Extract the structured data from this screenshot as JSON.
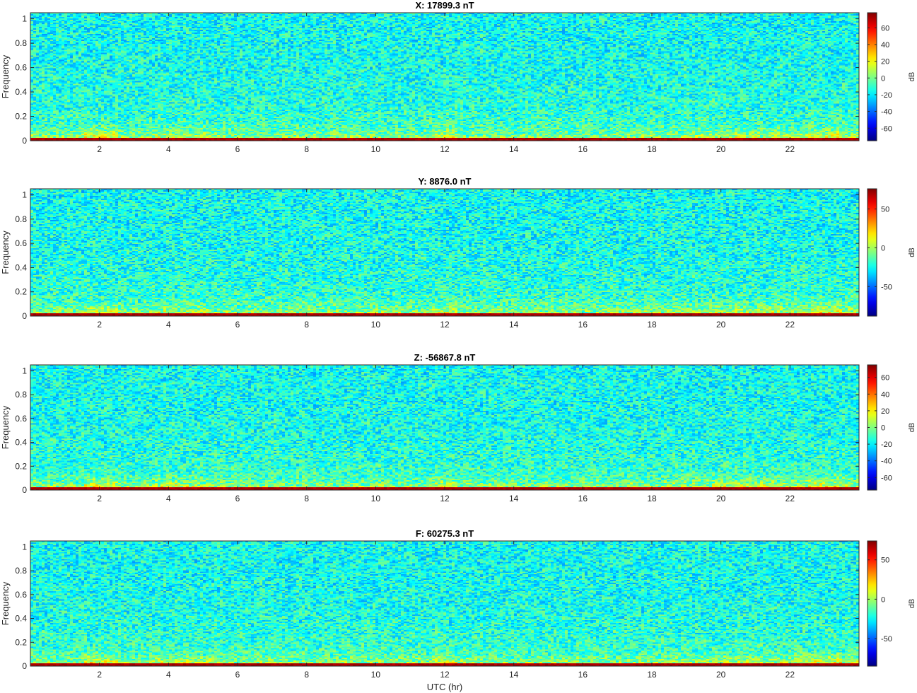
{
  "chart_data": [
    {
      "type": "heatmap",
      "title": "X: 17899.3 nT",
      "xlabel": "",
      "ylabel": "Frequency",
      "xlim": [
        0,
        24
      ],
      "ylim": [
        0,
        1.05
      ],
      "x_ticks": [
        2,
        4,
        6,
        8,
        10,
        12,
        14,
        16,
        18,
        20,
        22
      ],
      "y_ticks": [
        0,
        0.2,
        0.4,
        0.6,
        0.8,
        1
      ],
      "colorbar": {
        "label": "dB",
        "ticks": [
          60,
          40,
          20,
          0,
          -20,
          -40,
          -60
        ],
        "range": [
          -75,
          78
        ],
        "colormap": "jet"
      }
    },
    {
      "type": "heatmap",
      "title": "Y: 8876.0 nT",
      "xlabel": "",
      "ylabel": "Frequency",
      "xlim": [
        0,
        24
      ],
      "ylim": [
        0,
        1.05
      ],
      "x_ticks": [
        2,
        4,
        6,
        8,
        10,
        12,
        14,
        16,
        18,
        20,
        22
      ],
      "y_ticks": [
        0,
        0.2,
        0.4,
        0.6,
        0.8,
        1
      ],
      "colorbar": {
        "label": "dB",
        "ticks": [
          50,
          0,
          -50
        ],
        "range": [
          -88,
          76
        ],
        "colormap": "jet"
      }
    },
    {
      "type": "heatmap",
      "title": "Z: -56867.8 nT",
      "xlabel": "",
      "ylabel": "Frequency",
      "xlim": [
        0,
        24
      ],
      "ylim": [
        0,
        1.05
      ],
      "x_ticks": [
        2,
        4,
        6,
        8,
        10,
        12,
        14,
        16,
        18,
        20,
        22
      ],
      "y_ticks": [
        0,
        0.2,
        0.4,
        0.6,
        0.8,
        1
      ],
      "colorbar": {
        "label": "dB",
        "ticks": [
          60,
          40,
          20,
          0,
          -20,
          -40,
          -60
        ],
        "range": [
          -75,
          75
        ],
        "colormap": "jet"
      }
    },
    {
      "type": "heatmap",
      "title": "F: 60275.3 nT",
      "xlabel": "UTC (hr)",
      "ylabel": "Frequency",
      "xlim": [
        0,
        24
      ],
      "ylim": [
        0,
        1.05
      ],
      "x_ticks": [
        2,
        4,
        6,
        8,
        10,
        12,
        14,
        16,
        18,
        20,
        22
      ],
      "y_ticks": [
        0,
        0.2,
        0.4,
        0.6,
        0.8,
        1
      ],
      "colorbar": {
        "label": "dB",
        "ticks": [
          50,
          0,
          -50
        ],
        "range": [
          -85,
          74
        ],
        "colormap": "jet"
      }
    }
  ]
}
